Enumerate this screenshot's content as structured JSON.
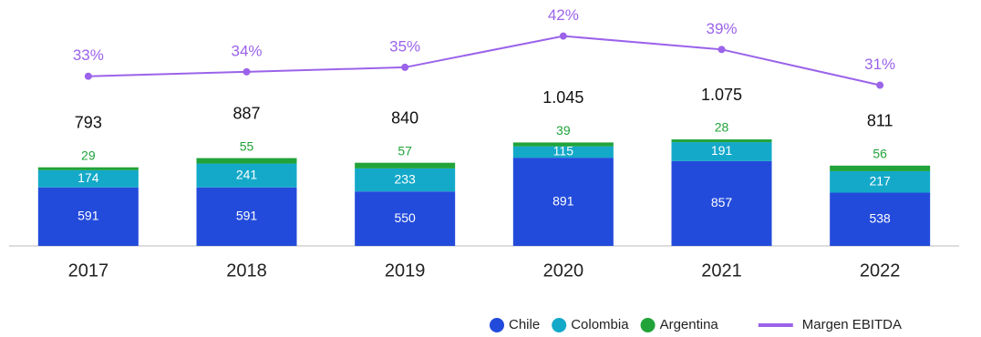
{
  "chart_data": {
    "type": "bar-line",
    "categories": [
      "2017",
      "2018",
      "2019",
      "2020",
      "2021",
      "2022"
    ],
    "series": [
      {
        "name": "Chile",
        "color": "#234bdb",
        "values": [
          591,
          591,
          550,
          891,
          857,
          538
        ]
      },
      {
        "name": "Colombia",
        "color": "#14a9c9",
        "values": [
          174,
          241,
          233,
          115,
          191,
          217
        ]
      },
      {
        "name": "Argentina",
        "color": "#21a33a",
        "values": [
          29,
          55,
          57,
          39,
          28,
          56
        ]
      },
      {
        "name": "Margen EBITDA",
        "color": "#9b63ea",
        "axis": "y2",
        "type": "line",
        "values": [
          33,
          34,
          35,
          42,
          39,
          31
        ],
        "value_labels": [
          "33%",
          "34%",
          "35%",
          "42%",
          "39%",
          "31%"
        ]
      }
    ],
    "totals": {
      "values": [
        793,
        887,
        840,
        1045,
        1075,
        811
      ],
      "value_labels": [
        "793",
        "887",
        "840",
        "1.045",
        "1.075",
        "811"
      ]
    },
    "ylim": [
      0,
      2300
    ],
    "y2lim": [
      -5,
      46
    ]
  }
}
